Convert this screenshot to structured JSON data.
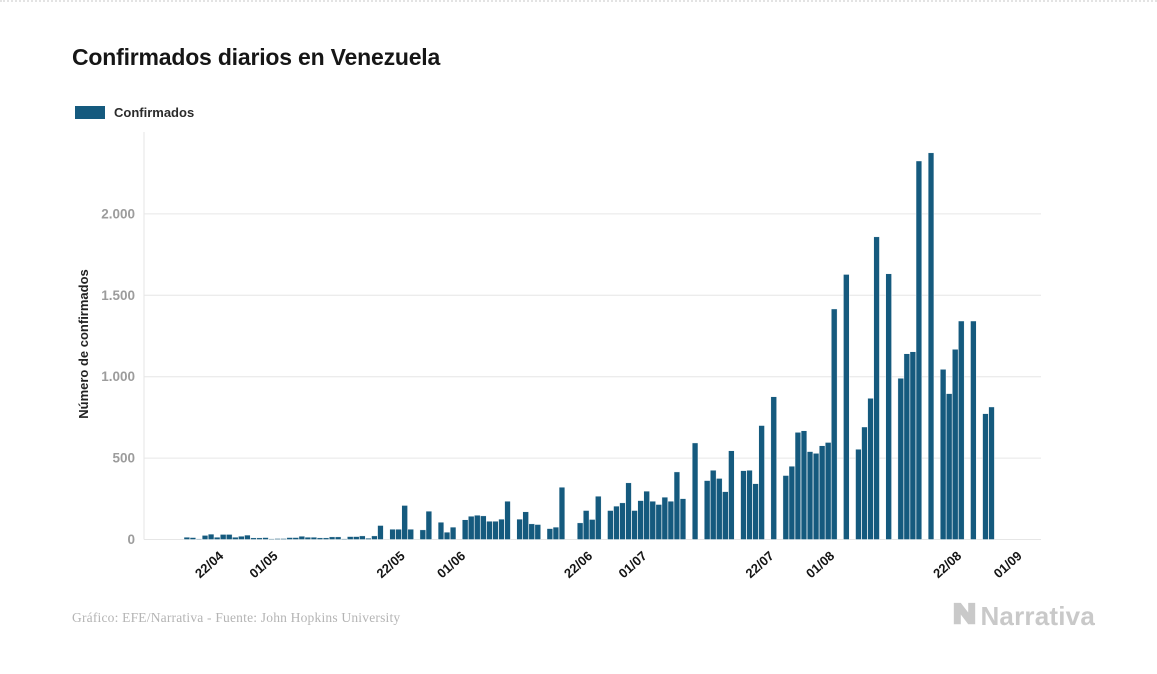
{
  "page": {
    "title": "Confirmados diarios en Venezuela"
  },
  "legend": {
    "label": "Confirmados",
    "color": "#155a7e"
  },
  "footer": {
    "credit": "Gráfico: EFE/Narrativa - Fuente: John Hopkins University",
    "brand": "Narrativa"
  },
  "chart_data": {
    "type": "bar",
    "title": "Confirmados diarios en Venezuela",
    "xlabel": "",
    "ylabel": "Número de confirmados",
    "legend_entries": [
      "Confirmados"
    ],
    "bar_color": "#155a7e",
    "grid": true,
    "ylim": [
      0,
      2450
    ],
    "yticks": {
      "values": [
        0,
        500,
        1000,
        1500,
        2000
      ],
      "labels": [
        "0",
        "500",
        "1.000",
        "1.500",
        "2.000"
      ]
    },
    "xticks": {
      "labels": [
        "22/04",
        "01/05",
        "22/05",
        "01/06",
        "22/06",
        "01/07",
        "22/07",
        "01/08",
        "22/08",
        "01/09"
      ],
      "indices": [
        6,
        15,
        36,
        46,
        67,
        76,
        97,
        107,
        128,
        138
      ]
    },
    "dates": [
      "16/04",
      "17/04",
      "18/04",
      "19/04",
      "20/04",
      "21/04",
      "22/04",
      "23/04",
      "24/04",
      "25/04",
      "26/04",
      "27/04",
      "28/04",
      "29/04",
      "30/04",
      "01/05",
      "02/05",
      "03/05",
      "04/05",
      "05/05",
      "06/05",
      "07/05",
      "08/05",
      "09/05",
      "10/05",
      "11/05",
      "12/05",
      "13/05",
      "14/05",
      "15/05",
      "16/05",
      "17/05",
      "18/05",
      "19/05",
      "20/05",
      "21/05",
      "22/05",
      "23/05",
      "24/05",
      "25/05",
      "26/05",
      "27/05",
      "28/05",
      "29/05",
      "30/05",
      "31/05",
      "01/06",
      "02/06",
      "03/06",
      "04/06",
      "05/06",
      "06/06",
      "07/06",
      "08/06",
      "09/06",
      "10/06",
      "11/06",
      "12/06",
      "13/06",
      "14/06",
      "15/06",
      "16/06",
      "17/06",
      "18/06",
      "19/06",
      "20/06",
      "21/06",
      "22/06",
      "23/06",
      "24/06",
      "25/06",
      "26/06",
      "27/06",
      "28/06",
      "29/06",
      "30/06",
      "01/07",
      "02/07",
      "03/07",
      "04/07",
      "05/07",
      "06/07",
      "07/07",
      "08/07",
      "09/07",
      "10/07",
      "11/07",
      "12/07",
      "13/07",
      "14/07",
      "15/07",
      "16/07",
      "17/07",
      "18/07",
      "19/07",
      "20/07",
      "21/07",
      "22/07",
      "23/07",
      "24/07",
      "25/07",
      "26/07",
      "27/07",
      "28/07",
      "29/07",
      "30/07",
      "31/07",
      "01/08",
      "02/08",
      "03/08",
      "04/08",
      "05/08",
      "06/08",
      "07/08",
      "08/08",
      "09/08",
      "10/08",
      "11/08",
      "12/08",
      "13/08",
      "14/08",
      "15/08",
      "16/08",
      "17/08",
      "18/08",
      "19/08",
      "20/08",
      "21/08",
      "22/08",
      "23/08",
      "24/08",
      "25/08",
      "26/08",
      "27/08"
    ],
    "values": [
      14,
      12,
      4,
      25,
      33,
      14,
      31,
      31,
      14,
      20,
      27,
      10,
      10,
      12,
      5,
      6,
      6,
      12,
      12,
      20,
      14,
      14,
      10,
      10,
      16,
      16,
      5,
      18,
      18,
      22,
      8,
      22,
      86,
      0,
      63,
      63,
      209,
      63,
      0,
      59,
      174,
      0,
      106,
      45,
      76,
      0,
      121,
      143,
      149,
      145,
      112,
      112,
      125,
      235,
      0,
      125,
      170,
      96,
      92,
      0,
      67,
      76,
      321,
      0,
      0,
      102,
      178,
      123,
      266,
      0,
      178,
      205,
      225,
      348,
      178,
      239,
      297,
      235,
      215,
      260,
      235,
      415,
      251,
      0,
      593,
      0,
      362,
      425,
      375,
      294,
      545,
      0,
      423,
      425,
      343,
      700,
      0,
      877,
      0,
      393,
      450,
      658,
      668,
      540,
      529,
      576,
      596,
      1416,
      0,
      1628,
      0,
      554,
      691,
      867,
      1859,
      0,
      1632,
      0,
      990,
      1141,
      1153,
      2325,
      0,
      2375,
      0,
      1045,
      896,
      1168,
      1342,
      0,
      1342,
      0,
      773,
      814
    ]
  }
}
